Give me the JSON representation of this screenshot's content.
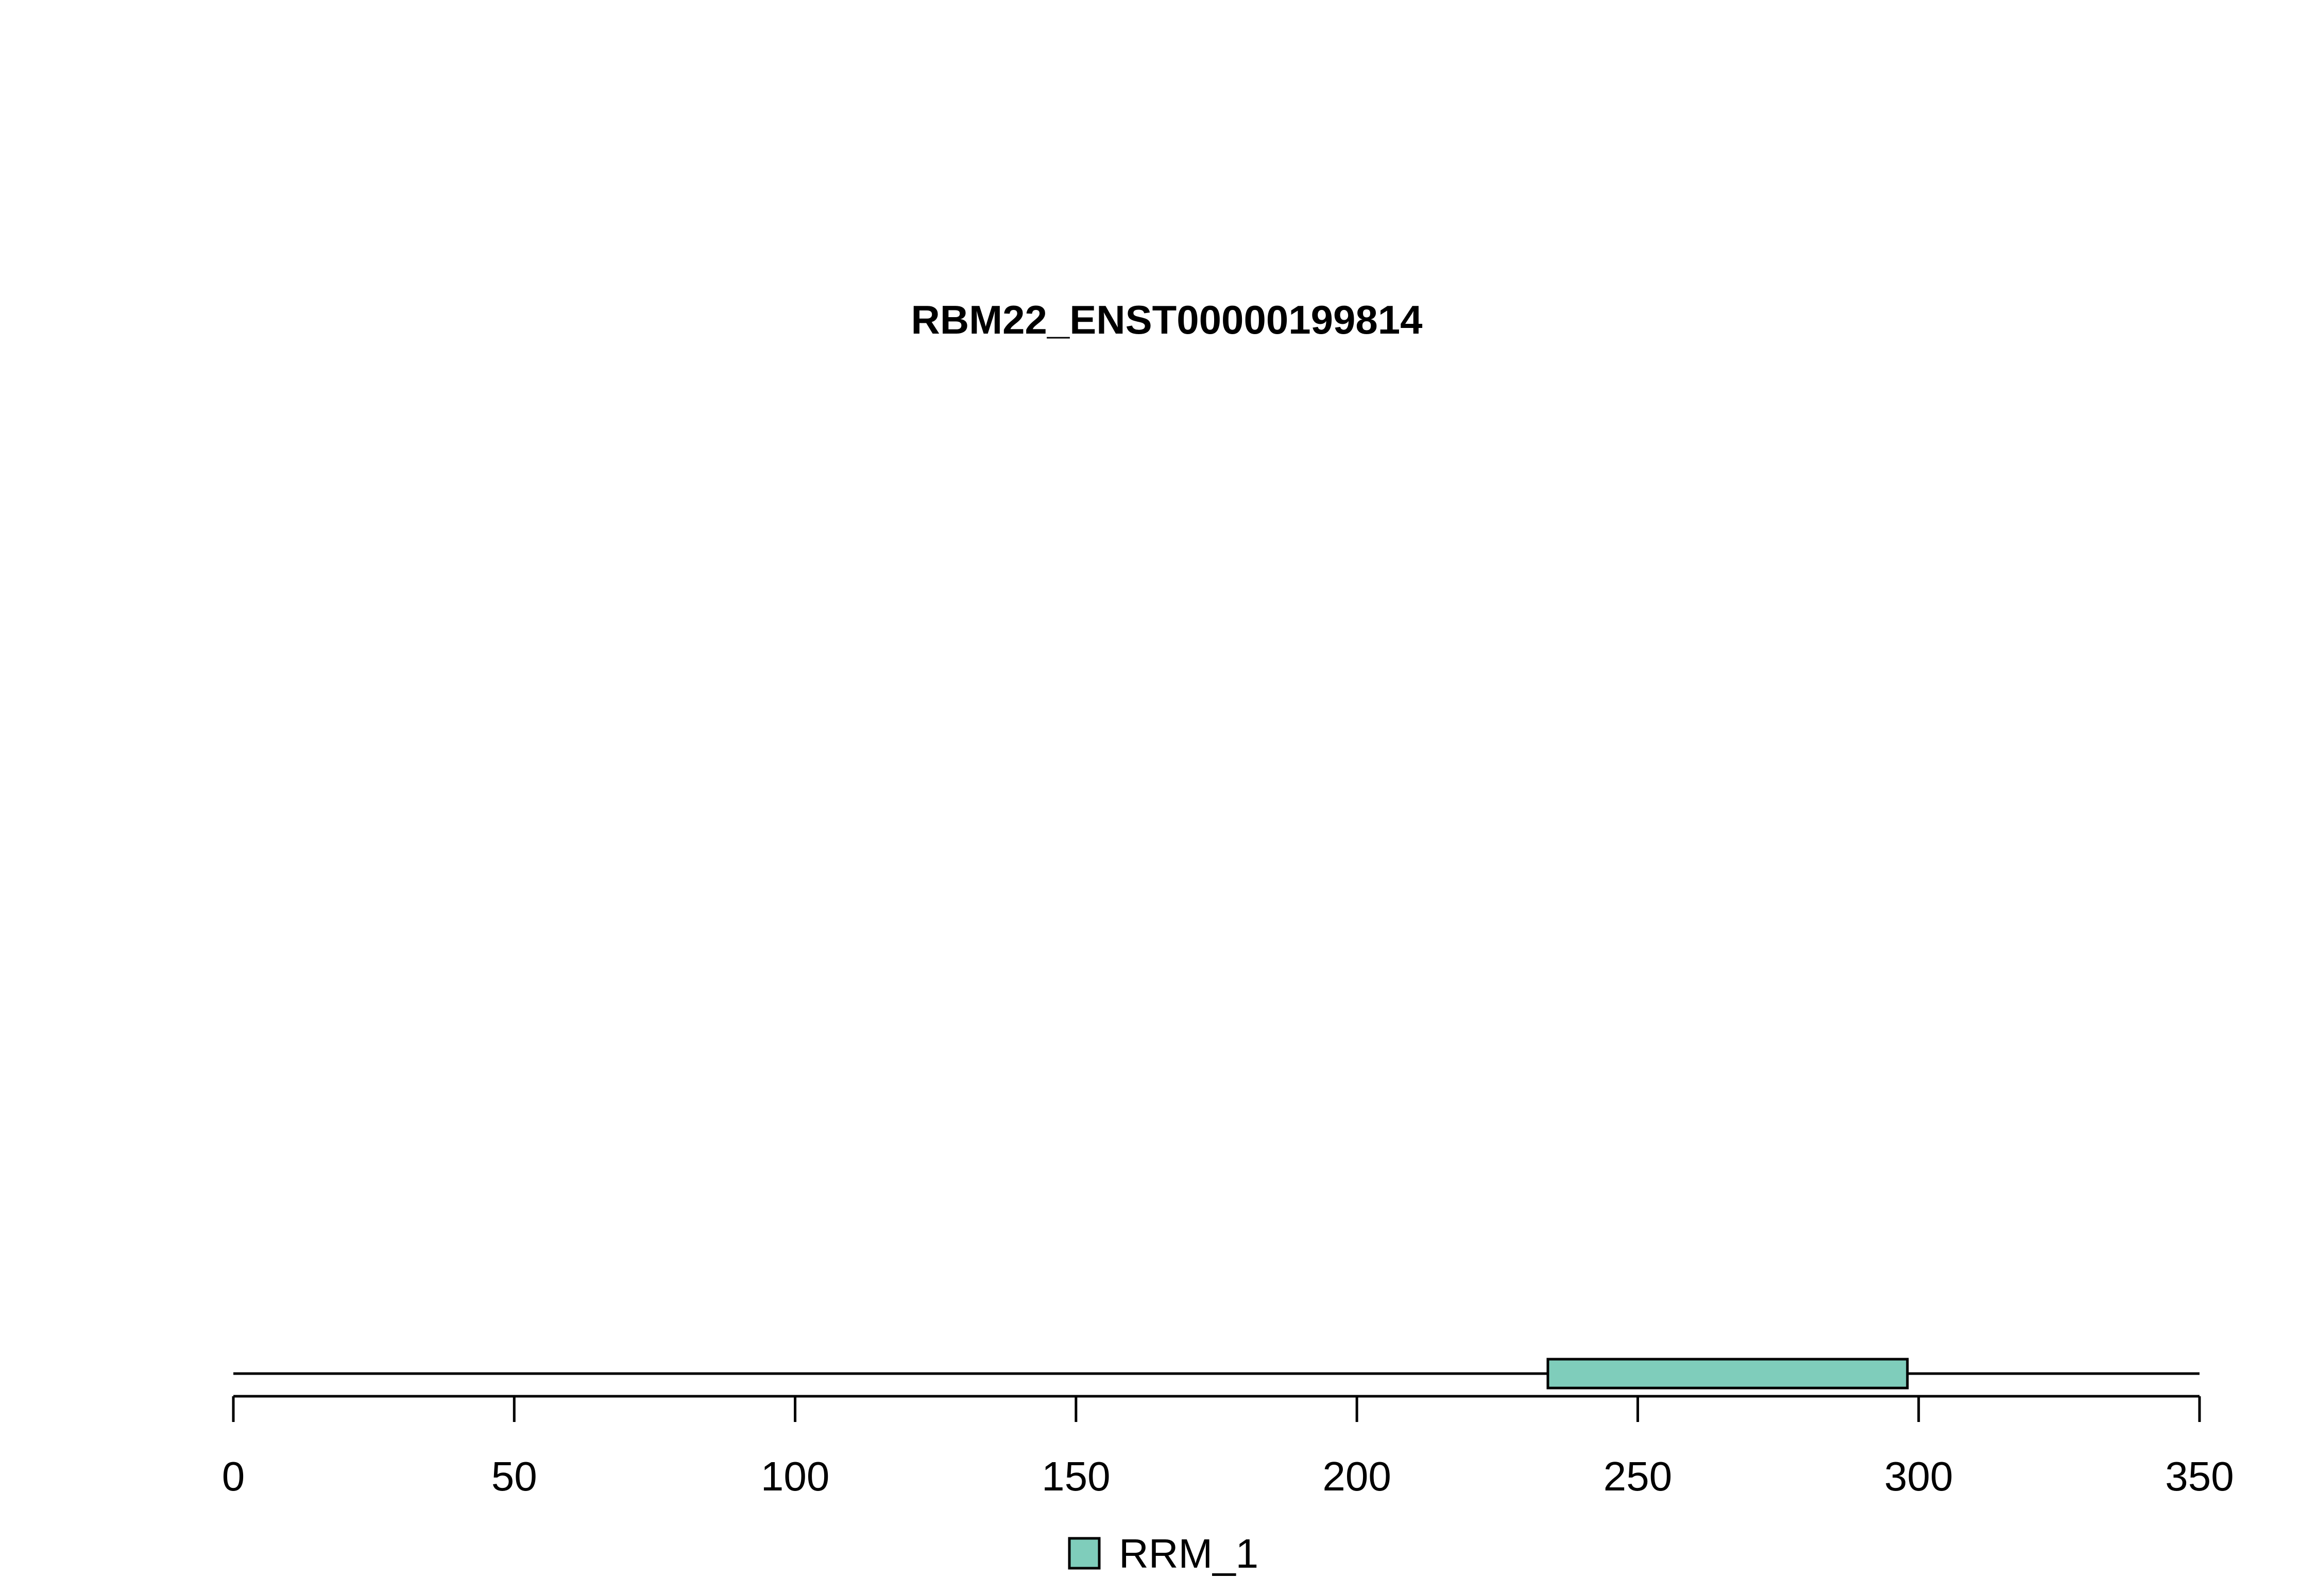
{
  "chart_data": {
    "type": "protein-domain-track",
    "title": "RBM22_ENST00000199814",
    "protein_length": 350,
    "xlim": [
      0,
      350
    ],
    "x_ticks": [
      0,
      50,
      100,
      150,
      200,
      250,
      300,
      350
    ],
    "tick_labels": [
      "0",
      "50",
      "100",
      "150",
      "200",
      "250",
      "300",
      "350"
    ],
    "domains": [
      {
        "name": "RRM_1",
        "start": 234,
        "end": 298,
        "color": "#7fcdbb"
      }
    ],
    "legend": {
      "placement": "bottom-center",
      "entries": [
        {
          "label": "RRM_1",
          "color": "#7fcdbb"
        }
      ]
    },
    "grid": false
  }
}
